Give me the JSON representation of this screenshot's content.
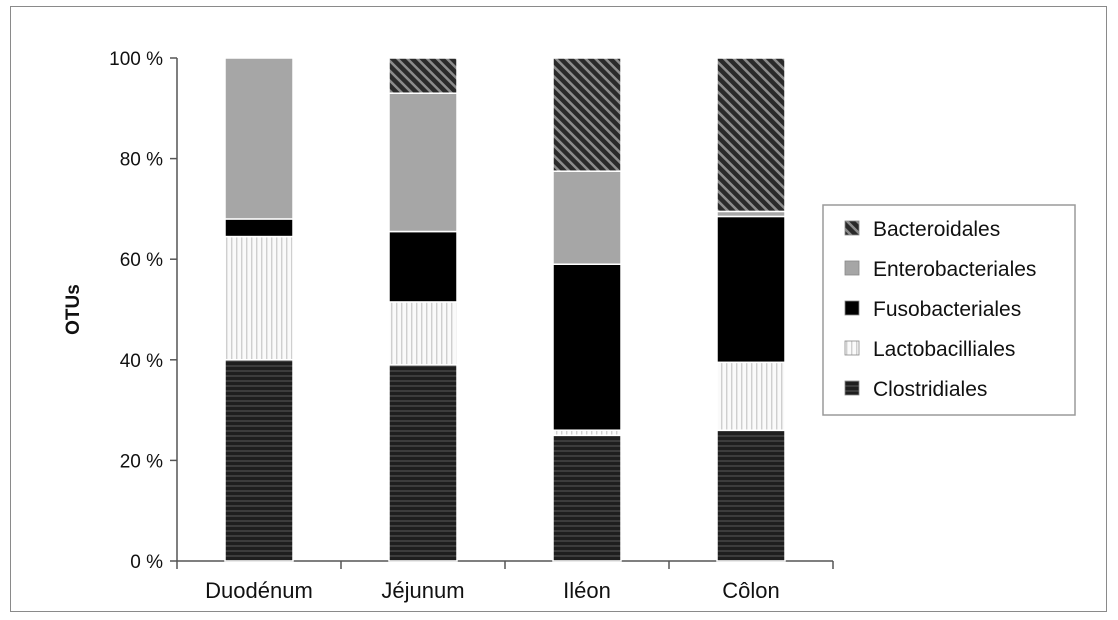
{
  "chart_data": {
    "type": "bar",
    "stacked": true,
    "percent": true,
    "title": "",
    "xlabel": "",
    "ylabel": "OTUs",
    "ylim": [
      0,
      100
    ],
    "yticks": [
      "0 %",
      "20 %",
      "40 %",
      "60 %",
      "80 %",
      "100 %"
    ],
    "ytick_values": [
      0,
      20,
      40,
      60,
      80,
      100
    ],
    "categories": [
      "Duodénum",
      "Jéjunum",
      "Iléon",
      "Côlon"
    ],
    "series": [
      {
        "name": "Clostridiales",
        "values": [
          40,
          39,
          25,
          26
        ],
        "color": "#262626",
        "pattern": "horizontal-lines"
      },
      {
        "name": "Lactobacilliales",
        "values": [
          24.5,
          12.5,
          1,
          13.5
        ],
        "color": "#f2f2f2",
        "pattern": "vertical-lines"
      },
      {
        "name": "Fusobacteriales",
        "values": [
          3.5,
          14,
          33,
          29
        ],
        "color": "#000000",
        "pattern": "solid"
      },
      {
        "name": "Enterobacteriales",
        "values": [
          32,
          27.5,
          18.5,
          1
        ],
        "color": "#a6a6a6",
        "pattern": "solid"
      },
      {
        "name": "Bacteroidales",
        "values": [
          0,
          7,
          22.5,
          30.5
        ],
        "color": "#3a3a3a",
        "pattern": "diagonal-lines"
      }
    ],
    "legend": {
      "position": "right",
      "order": [
        "Bacteroidales",
        "Enterobacteriales",
        "Fusobacteriales",
        "Lactobacilliales",
        "Clostridiales"
      ]
    },
    "grid": false
  }
}
